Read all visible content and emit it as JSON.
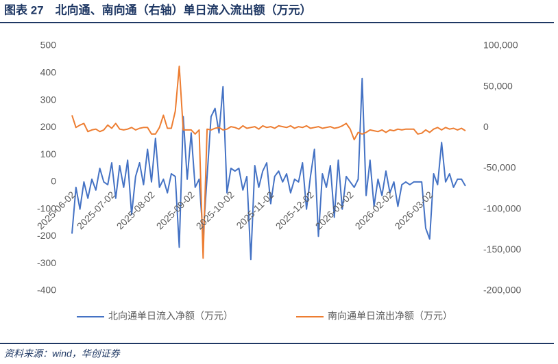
{
  "chart_data": {
    "type": "line",
    "title": "图表 27　北向通、南向通（右轴）单日流入流出额（万元）",
    "source": "资料来源：wind，华创证券",
    "categories": [
      "2025-06-02",
      null,
      null,
      null,
      null,
      null,
      null,
      null,
      null,
      null,
      "2025-07-02",
      null,
      null,
      null,
      null,
      null,
      null,
      null,
      null,
      null,
      "2025-08-02",
      null,
      null,
      null,
      null,
      null,
      null,
      null,
      null,
      null,
      "2025-09-02",
      null,
      null,
      null,
      null,
      null,
      null,
      null,
      null,
      null,
      "2025-10-02",
      null,
      null,
      null,
      null,
      null,
      null,
      null,
      null,
      null,
      "2025-11-02",
      null,
      null,
      null,
      null,
      null,
      null,
      null,
      null,
      null,
      "2025-12-02",
      null,
      null,
      null,
      null,
      null,
      null,
      null,
      null,
      null,
      "2026-01-02",
      null,
      null,
      null,
      null,
      null,
      null,
      null,
      null,
      null,
      "2026-02-02",
      null,
      null,
      null,
      null,
      null,
      null,
      null,
      null,
      null,
      "2026-03-02",
      null,
      null,
      null,
      null,
      null,
      null,
      null,
      null,
      null
    ],
    "series": [
      {
        "name": "北向通单日流入净额（万元）",
        "color": "#4472c4",
        "axis": "y",
        "values": [
          -190,
          -20,
          -100,
          0,
          -60,
          10,
          -30,
          50,
          0,
          -10,
          70,
          -60,
          60,
          -20,
          80,
          -120,
          20,
          70,
          -10,
          120,
          0,
          160,
          -20,
          10,
          -40,
          30,
          20,
          -240,
          240,
          10,
          180,
          -20,
          10,
          -200,
          20,
          240,
          270,
          180,
          350,
          -40,
          50,
          40,
          50,
          -30,
          20,
          -285,
          60,
          -20,
          40,
          70,
          -80,
          20,
          40,
          0,
          30,
          -40,
          10,
          0,
          70,
          -100,
          20,
          120,
          -200,
          30,
          -20,
          60,
          -130,
          80,
          -100,
          20,
          0,
          -20,
          10,
          380,
          -50,
          80,
          -90,
          10,
          -50,
          40,
          -40,
          0,
          -90,
          -10,
          0,
          -10,
          0,
          0,
          0,
          -170,
          -210,
          30,
          -10,
          145,
          0,
          30,
          -20,
          10,
          10,
          -15
        ]
      },
      {
        "name": "南向通单日流出净额（万元）",
        "color": "#ed7d31",
        "axis": "y2",
        "values": [
          15000,
          0,
          3000,
          5000,
          -5000,
          -3000,
          -2000,
          -5000,
          -3000,
          3000,
          -1000,
          5000,
          -2000,
          -3000,
          -2000,
          0,
          -3000,
          -1000,
          0,
          0,
          -8000,
          -8000,
          0,
          15000,
          -1000,
          -1000,
          20000,
          75000,
          -3000,
          -3000,
          -3000,
          -8000,
          -3000,
          -160000,
          -2000,
          -3000,
          -1000,
          0,
          -3000,
          -2000,
          1000,
          0,
          -2000,
          2000,
          -1000,
          0,
          1000,
          -2000,
          2000,
          0,
          1000,
          -1000,
          2000,
          1000,
          0,
          2000,
          -1000,
          1000,
          0,
          2000,
          -1000,
          0,
          1000,
          -1000,
          0,
          1000,
          -1000,
          0,
          2000,
          5000,
          -2000,
          -15000,
          -6000,
          -8000,
          -6000,
          -3000,
          -4000,
          -5000,
          -3000,
          -6000,
          -3000,
          -4000,
          -2000,
          -3000,
          -2000,
          -2000,
          -2000,
          -8000,
          -7000,
          -3000,
          -6000,
          -2000,
          0,
          -3000,
          0,
          -2000,
          -1000,
          -3000,
          -1000,
          -4000
        ]
      }
    ],
    "ylim": [
      -400,
      500
    ],
    "yticks": [
      -400,
      -300,
      -200,
      -100,
      0,
      100,
      200,
      300,
      400,
      500
    ],
    "y2lim": [
      -200000,
      100000
    ],
    "y2ticks": [
      {
        "value": -200000,
        "label": "-200,000"
      },
      {
        "value": -150000,
        "label": "-150,000"
      },
      {
        "value": -100000,
        "label": "-100,000"
      },
      {
        "value": -50000,
        "label": "-50,000"
      },
      {
        "value": 0,
        "label": "0"
      },
      {
        "value": 50000,
        "label": "50,000"
      },
      {
        "value": 100000,
        "label": "100,000"
      }
    ],
    "grid": false,
    "legend": "bottom"
  }
}
